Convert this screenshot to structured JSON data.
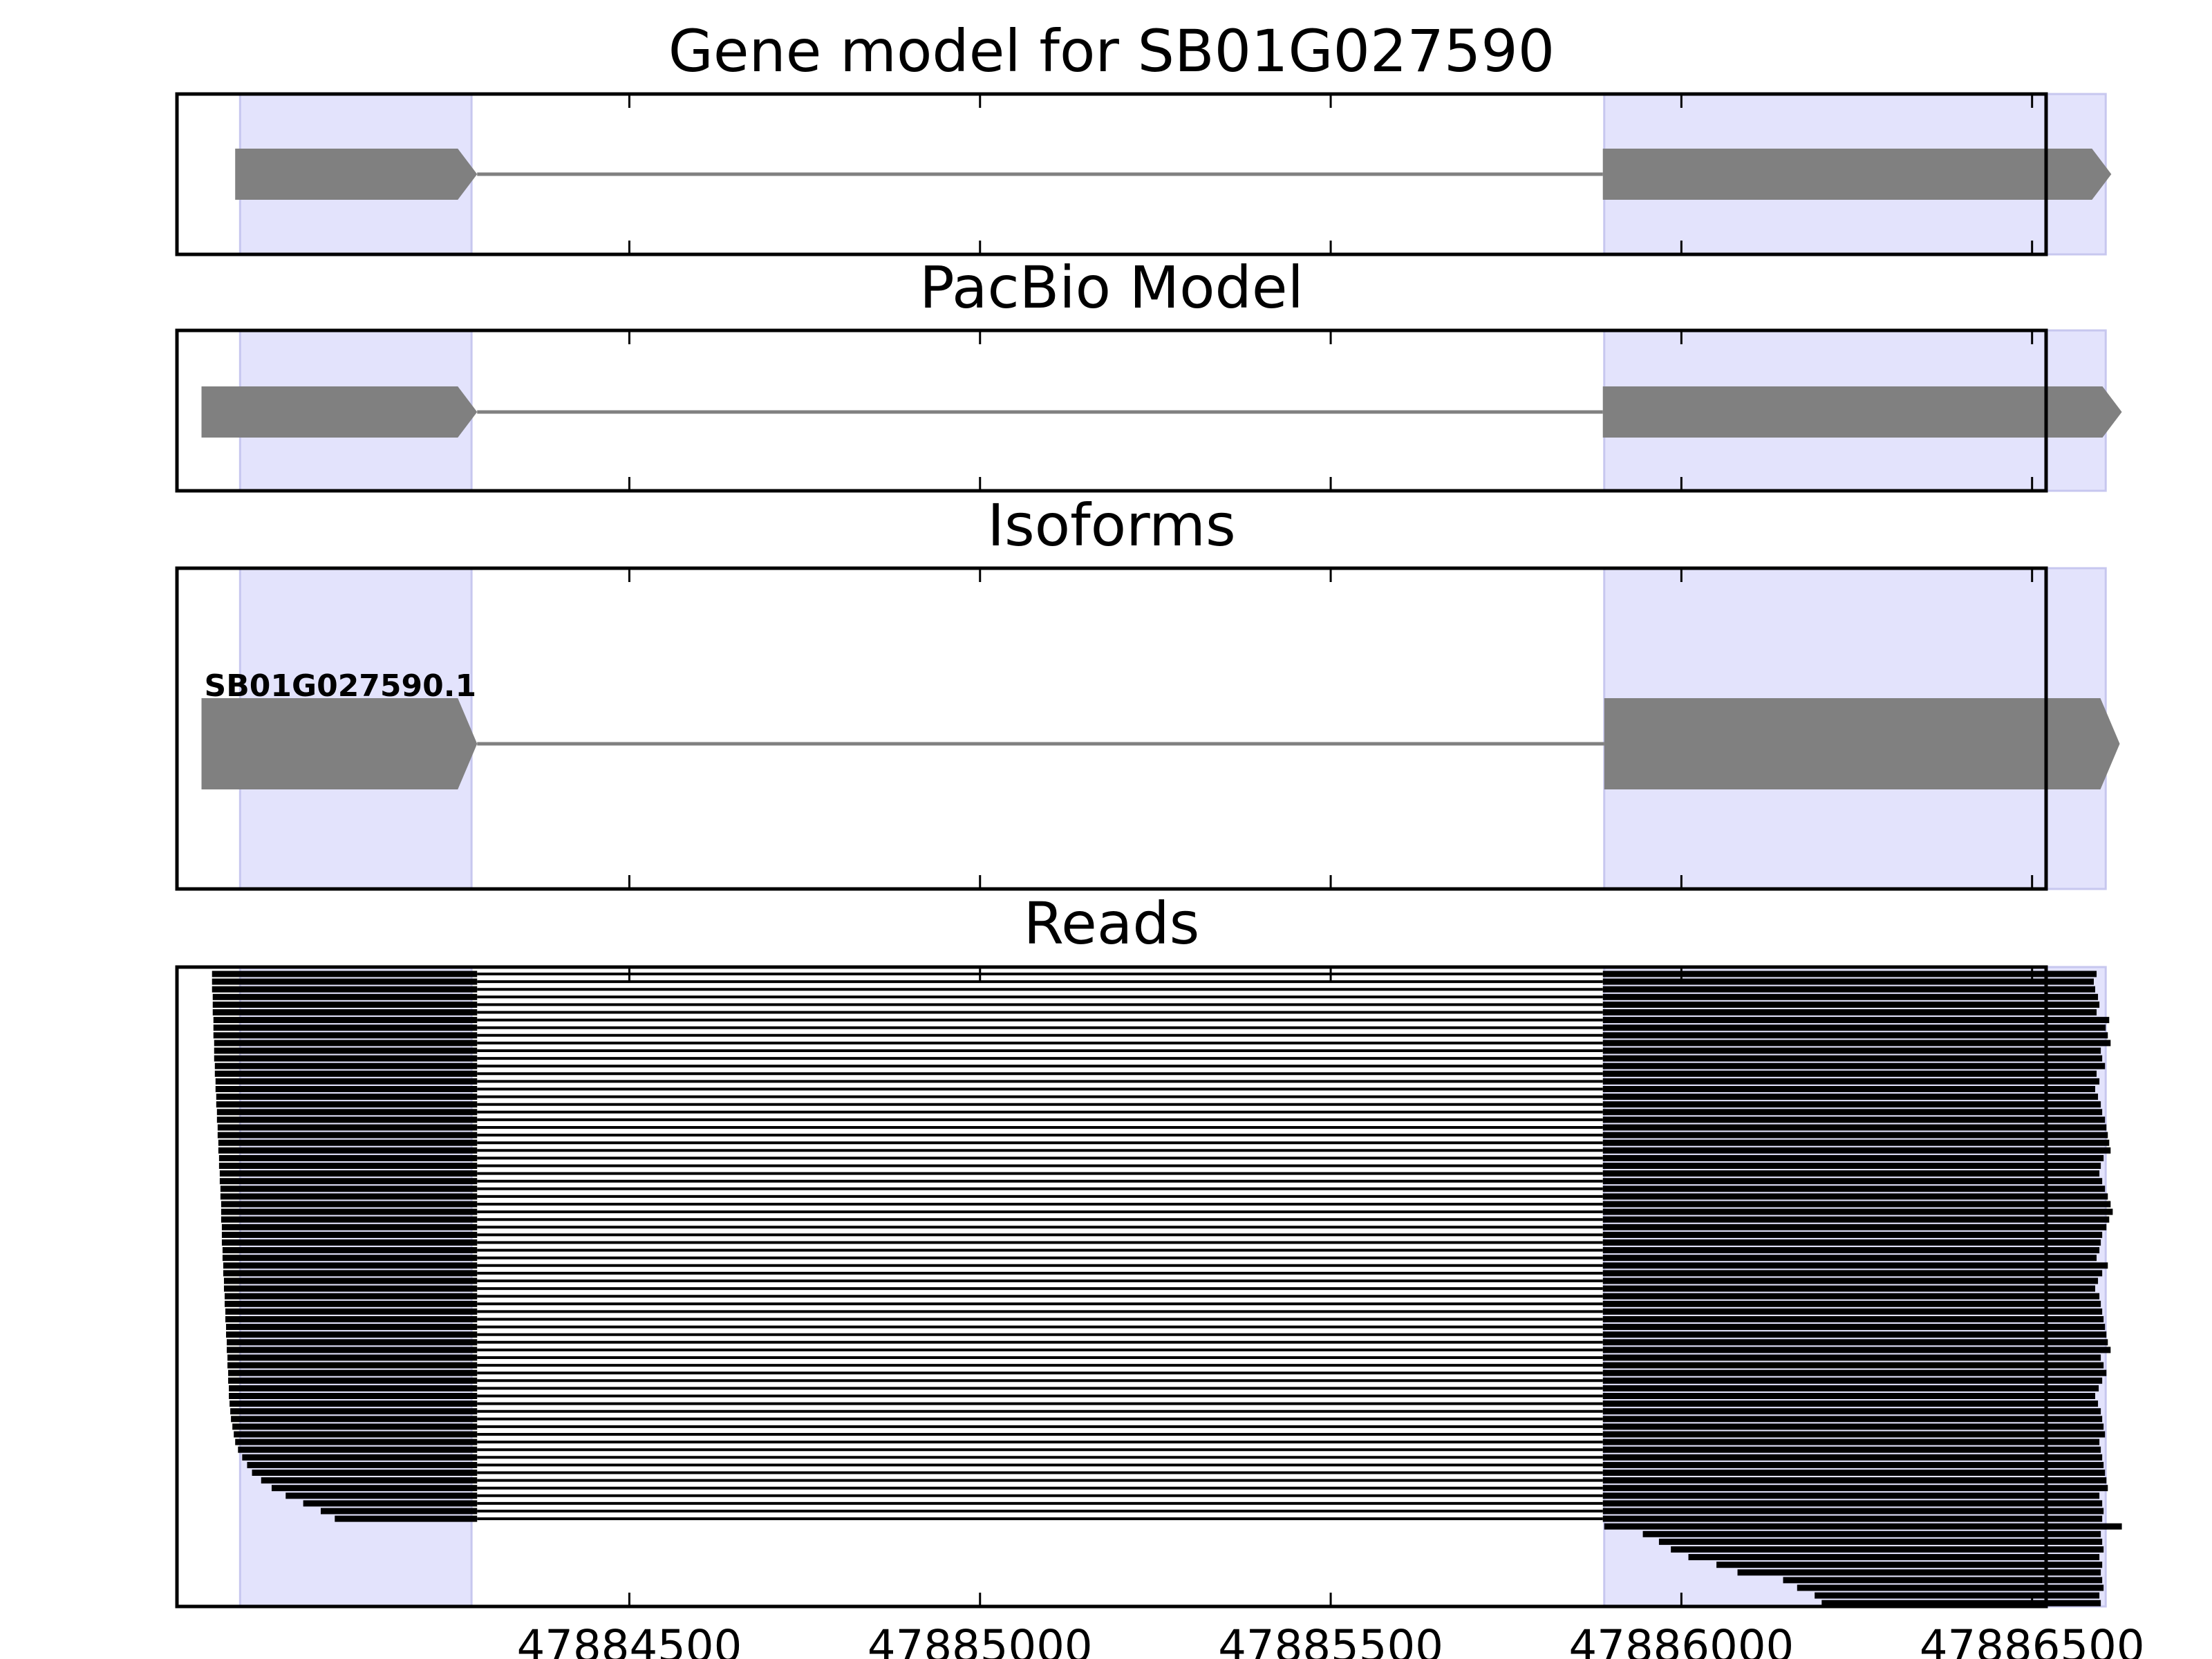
{
  "figure": {
    "colors": {
      "highlight": "#e3e3fc",
      "highlight_edge": "#c7c7ef",
      "model": "#808080",
      "read": "#000000"
    }
  },
  "chart_data": [
    {
      "type": "gene-track",
      "title": "Gene model for SB01G027590",
      "strand": "+",
      "exons": [
        [
          47883938,
          47884283
        ],
        [
          47885888,
          47886613
        ]
      ],
      "highlight_regions": [
        [
          47883945,
          47884275
        ],
        [
          47885890,
          47886605
        ]
      ]
    },
    {
      "type": "gene-track",
      "title": "PacBio Model",
      "strand": "+",
      "exons": [
        [
          47883890,
          47884283
        ],
        [
          47885888,
          47886628
        ]
      ],
      "highlight_regions": [
        [
          47883945,
          47884275
        ],
        [
          47885890,
          47886605
        ]
      ]
    },
    {
      "type": "gene-track",
      "title": "Isoforms",
      "strand": "+",
      "isoforms": [
        {
          "label": "SB01G027590.1",
          "exons": [
            [
              47883890,
              47884283
            ],
            [
              47885890,
              47886625
            ]
          ]
        }
      ],
      "highlight_regions": [
        [
          47883945,
          47884275
        ],
        [
          47885890,
          47886605
        ]
      ]
    },
    {
      "type": "reads",
      "title": "Reads",
      "xlim": [
        47883855,
        47886520
      ],
      "xticks": [
        47884500,
        47885000,
        47885500,
        47886000,
        47886500
      ],
      "xtick_labels": [
        "47884500",
        "47885000",
        "47885500",
        "47886000",
        "47886500"
      ],
      "spliced_reads": {
        "intron": [
          47884283,
          47885888
        ],
        "starts": [
          47883905,
          47883905,
          47883905,
          47883906,
          47883906,
          47883906,
          47883907,
          47883907,
          47883907,
          47883908,
          47883908,
          47883908,
          47883909,
          47883909,
          47883910,
          47883910,
          47883911,
          47883911,
          47883912,
          47883912,
          47883913,
          47883913,
          47883914,
          47883914,
          47883915,
          47883915,
          47883916,
          47883916,
          47883917,
          47883917,
          47883918,
          47883918,
          47883918,
          47883919,
          47883919,
          47883919,
          47883920,
          47883920,
          47883921,
          47883921,
          47883922,
          47883922,
          47883923,
          47883923,
          47883924,
          47883924,
          47883925,
          47883925,
          47883926,
          47883926,
          47883927,
          47883927,
          47883928,
          47883928,
          47883929,
          47883929,
          47883930,
          47883931,
          47883932,
          47883934,
          47883936,
          47883938,
          47883942,
          47883948,
          47883955,
          47883962,
          47883975,
          47883990,
          47884010,
          47884035,
          47884060,
          47884080
        ],
        "ends": [
          47886592,
          47886588,
          47886590,
          47886594,
          47886596,
          47886592,
          47886610,
          47886605,
          47886608,
          47886612,
          47886598,
          47886600,
          47886604,
          47886592,
          47886596,
          47886590,
          47886594,
          47886598,
          47886600,
          47886604,
          47886606,
          47886608,
          47886610,
          47886612,
          47886602,
          47886598,
          47886596,
          47886600,
          47886604,
          47886608,
          47886612,
          47886615,
          47886610,
          47886606,
          47886600,
          47886598,
          47886596,
          47886592,
          47886608,
          47886600,
          47886594,
          47886590,
          47886596,
          47886598,
          47886600,
          47886602,
          47886604,
          47886606,
          47886608,
          47886612,
          47886598,
          47886602,
          47886606,
          47886600,
          47886595,
          47886590,
          47886594,
          47886598,
          47886600,
          47886602,
          47886604,
          47886596,
          47886598,
          47886600,
          47886602,
          47886604,
          47886606,
          47886608,
          47886596,
          47886600,
          47886602,
          47886600
        ]
      },
      "exon2_reads": {
        "starts": [
          47885890,
          47885945,
          47885968,
          47885985,
          47886010,
          47886050,
          47886080,
          47886145,
          47886165,
          47886190,
          47886200
        ],
        "ends": [
          47886628,
          47886598,
          47886600,
          47886602,
          47886596,
          47886600,
          47886598,
          47886600,
          47886602,
          47886596,
          47886598
        ]
      },
      "highlight_regions": [
        [
          47883945,
          47884275
        ],
        [
          47885890,
          47886605
        ]
      ]
    }
  ]
}
